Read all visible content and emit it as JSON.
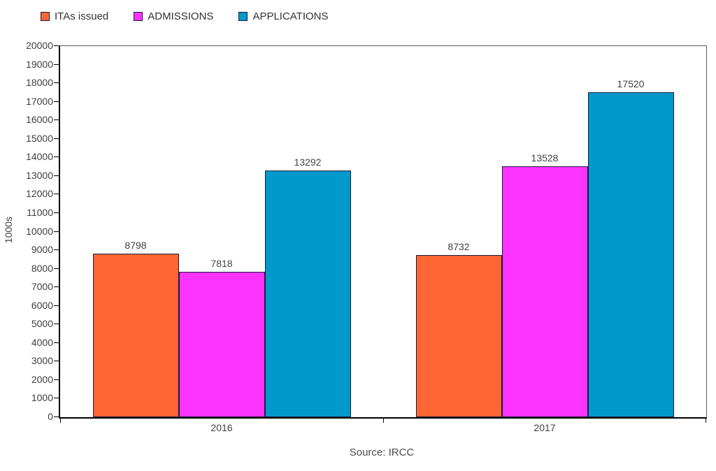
{
  "chart_data": {
    "type": "bar",
    "title": "",
    "categories": [
      "2016",
      "2017"
    ],
    "series": [
      {
        "name": "ITAs issued",
        "color": "#FF6633",
        "values": [
          8798,
          8732
        ]
      },
      {
        "name": "ADMISSIONS",
        "color": "#FF33FF",
        "values": [
          7818,
          13528
        ]
      },
      {
        "name": "APPLICATIONS",
        "color": "#0099CC",
        "values": [
          13292,
          17520
        ]
      }
    ],
    "xlabel": "",
    "ylabel": "1000s",
    "ylim": [
      0,
      20000
    ],
    "ytick_step": 1000,
    "grid": false,
    "legend_position": "top-left",
    "bar_labels": true,
    "source_note": "Source: IRCC"
  },
  "colors": {
    "bar_border": "#1A1A3E",
    "axis_line": "#000000",
    "plot_border": "#595959",
    "text": "#404040"
  }
}
